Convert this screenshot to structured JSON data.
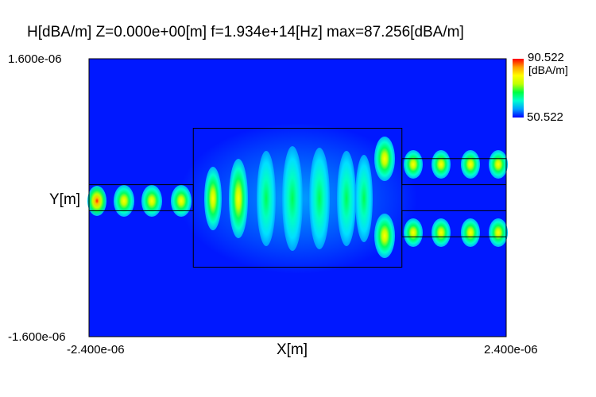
{
  "chart_data": {
    "type": "heatmap",
    "title": "H[dBA/m] Z=0.000e+00[m] f=1.934e+14[Hz] max=87.256[dBA/m]",
    "xlabel": "X[m]",
    "ylabel": "Y[m]",
    "x_ticks": [
      "-2.400e-06",
      "2.400e-06"
    ],
    "y_ticks": [
      "1.600e-06",
      "-1.600e-06"
    ],
    "xlim": [
      -2.4e-06,
      2.4e-06
    ],
    "ylim": [
      -1.6e-06,
      1.6e-06
    ],
    "colorbar": {
      "max_label": "90.522",
      "min_label": "50.522",
      "unit": "[dBA/m]",
      "range": [
        50.522,
        90.522
      ],
      "colors": [
        "#0000ff",
        "#00a0ff",
        "#00ffd0",
        "#00ff40",
        "#c0ff00",
        "#ffff00",
        "#ffa000",
        "#ff0000"
      ]
    },
    "background_color": "#0018ff",
    "structure": {
      "input_waveguide": {
        "x": [
          -2.4e-06,
          -1.2e-06
        ],
        "y": [
          -1.5e-07,
          1.5e-07
        ]
      },
      "mmi_region": {
        "x": [
          -1.2e-06,
          1.2e-06
        ],
        "y": [
          -8e-07,
          8e-07
        ]
      },
      "output_waveguides": [
        {
          "x": [
            1.2e-06,
            2.4e-06
          ],
          "y": [
            1.5e-07,
            4.5e-07
          ]
        },
        {
          "x": [
            1.2e-06,
            2.4e-06
          ],
          "y": [
            -4.5e-07,
            -1.5e-07
          ]
        }
      ]
    }
  }
}
